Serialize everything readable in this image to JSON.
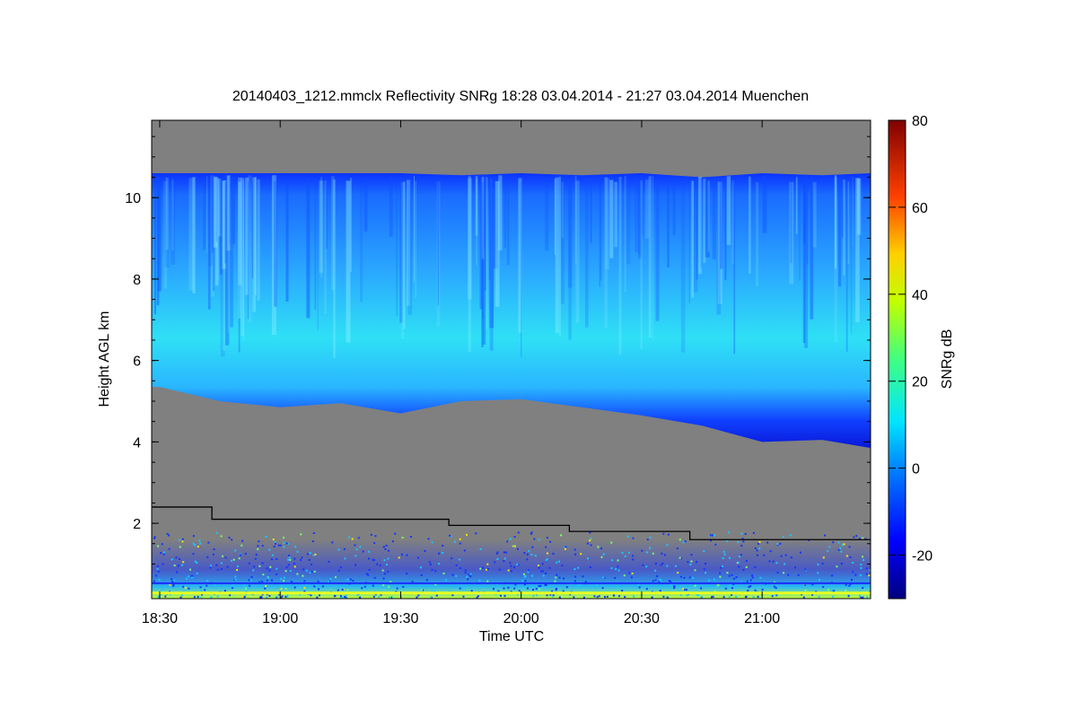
{
  "chart_data": {
    "type": "heatmap",
    "title": "20140403_1212.mmclx Reflectivity SNRg   18:28 03.04.2014 - 21:27 03.04.2014 Muenchen",
    "xlabel": "Time UTC",
    "ylabel": "Height AGL km",
    "x_tick_labels": [
      "18:30",
      "19:00",
      "19:30",
      "20:00",
      "20:30",
      "21:00"
    ],
    "x_tick_minutes": [
      1110,
      1140,
      1170,
      1200,
      1230,
      1260
    ],
    "xlim_minutes": [
      1108,
      1287
    ],
    "y_ticks": [
      2,
      4,
      6,
      8,
      10
    ],
    "ylim": [
      0.15,
      11.9
    ],
    "colorbar": {
      "label": "SNRg dB",
      "ticks": [
        -20,
        0,
        20,
        40,
        60,
        80
      ],
      "range": [
        -30,
        80
      ]
    },
    "background_color": "#808080",
    "cloud_layer": {
      "description_times": [
        1110,
        1125,
        1140,
        1155,
        1170,
        1185,
        1200,
        1215,
        1230,
        1245,
        1260,
        1275,
        1287
      ],
      "top_km": [
        10.6,
        10.6,
        10.6,
        10.6,
        10.6,
        10.55,
        10.6,
        10.55,
        10.6,
        10.5,
        10.6,
        10.55,
        10.6
      ],
      "base_km": [
        5.35,
        5.0,
        4.85,
        4.95,
        4.7,
        5.0,
        5.05,
        4.85,
        4.65,
        4.4,
        4.0,
        4.05,
        3.85
      ]
    },
    "boundary_line": {
      "color": "#000000",
      "x_minutes": [
        1108,
        1123,
        1123,
        1182,
        1182,
        1212,
        1212,
        1242,
        1242,
        1287
      ],
      "y_km": [
        2.4,
        2.4,
        2.1,
        2.1,
        1.95,
        1.95,
        1.8,
        1.8,
        1.6,
        1.6
      ]
    }
  }
}
